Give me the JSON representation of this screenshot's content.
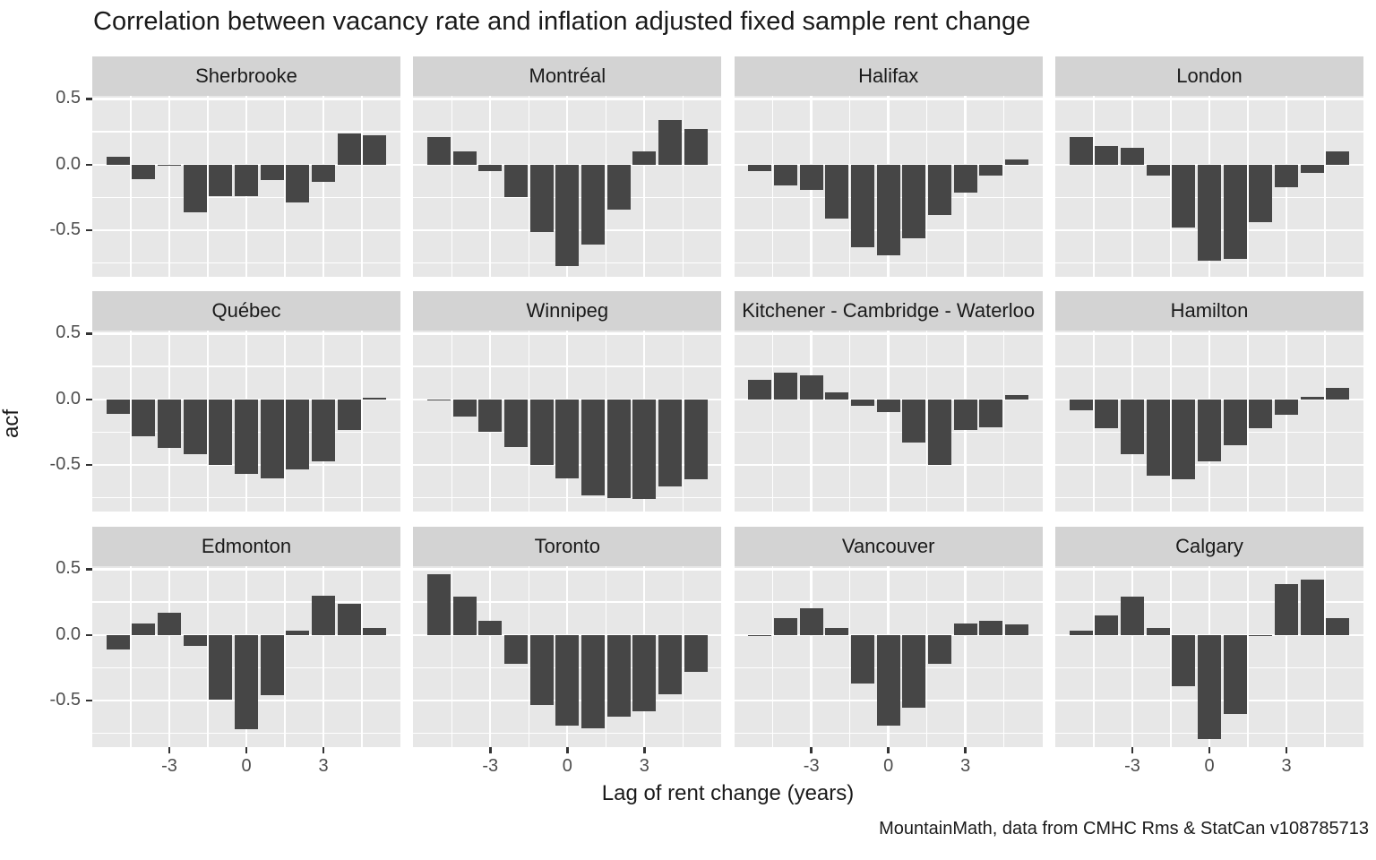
{
  "title": "Correlation between vacancy rate and inflation adjusted fixed sample rent change",
  "caption": "MountainMath, data from CMHC Rms & StatCan v108785713",
  "chart_data": {
    "type": "bar",
    "title": "Correlation between vacancy rate and inflation adjusted fixed sample rent change",
    "xlabel": "Lag of rent change (years)",
    "ylabel": "acf",
    "x": [
      -5,
      -4,
      -3,
      -2,
      -1,
      0,
      1,
      2,
      3,
      4,
      5
    ],
    "x_tick_values": [
      -3,
      0,
      3
    ],
    "x_tick_labels": [
      "-3",
      "0",
      "3"
    ],
    "y_tick_values": [
      0.5,
      0.0,
      -0.5
    ],
    "y_tick_labels": [
      "0.5",
      "0.0",
      "-0.5"
    ],
    "xlim": [
      -6,
      6
    ],
    "ylim": [
      -0.853,
      0.523
    ],
    "grid": "on",
    "x_minor_gridlines": [
      -4.5,
      -1.5,
      1.5,
      4.5
    ],
    "y_minor_gridlines": [
      0.25,
      -0.25,
      -0.75
    ],
    "facet_layout": {
      "rows": 3,
      "cols": 4
    },
    "series": [
      {
        "name": "Sherbrooke",
        "values": [
          0.06,
          -0.11,
          -0.01,
          -0.36,
          -0.24,
          -0.24,
          -0.12,
          -0.29,
          -0.13,
          0.24,
          0.22
        ]
      },
      {
        "name": "Montréal",
        "values": [
          0.21,
          0.1,
          -0.05,
          -0.25,
          -0.51,
          -0.77,
          -0.61,
          -0.34,
          0.1,
          0.34,
          0.27
        ]
      },
      {
        "name": "Halifax",
        "values": [
          -0.05,
          -0.16,
          -0.19,
          -0.41,
          -0.63,
          -0.69,
          -0.56,
          -0.38,
          -0.21,
          -0.08,
          0.04
        ]
      },
      {
        "name": "London",
        "values": [
          0.21,
          0.14,
          0.13,
          -0.08,
          -0.48,
          -0.73,
          -0.72,
          -0.44,
          -0.17,
          -0.06,
          0.1
        ]
      },
      {
        "name": "Québec",
        "values": [
          -0.11,
          -0.28,
          -0.37,
          -0.42,
          -0.5,
          -0.57,
          -0.6,
          -0.53,
          -0.47,
          -0.23,
          0.01
        ]
      },
      {
        "name": "Winnipeg",
        "values": [
          -0.01,
          -0.13,
          -0.25,
          -0.36,
          -0.5,
          -0.6,
          -0.73,
          -0.75,
          -0.76,
          -0.66,
          -0.61
        ]
      },
      {
        "name": "Kitchener - Cambridge - Waterloo",
        "values": [
          0.15,
          0.2,
          0.18,
          0.05,
          -0.05,
          -0.1,
          -0.33,
          -0.5,
          -0.23,
          -0.21,
          0.03
        ]
      },
      {
        "name": "Hamilton",
        "values": [
          -0.08,
          -0.22,
          -0.42,
          -0.58,
          -0.61,
          -0.47,
          -0.35,
          -0.22,
          -0.12,
          0.02,
          0.09
        ]
      },
      {
        "name": "Edmonton",
        "values": [
          -0.11,
          0.09,
          0.17,
          -0.08,
          -0.49,
          -0.72,
          -0.46,
          0.03,
          0.3,
          0.24,
          0.05
        ]
      },
      {
        "name": "Toronto",
        "values": [
          0.46,
          0.29,
          0.11,
          -0.22,
          -0.53,
          -0.69,
          -0.71,
          -0.62,
          -0.58,
          -0.45,
          -0.28
        ]
      },
      {
        "name": "Vancouver",
        "values": [
          -0.01,
          0.13,
          0.2,
          0.05,
          -0.37,
          -0.69,
          -0.55,
          -0.22,
          0.09,
          0.11,
          0.08
        ]
      },
      {
        "name": "Calgary",
        "values": [
          0.03,
          0.15,
          0.29,
          0.05,
          -0.39,
          -0.79,
          -0.6,
          -0.01,
          0.39,
          0.42,
          0.13
        ]
      }
    ],
    "colors": {
      "bar": "#464646",
      "panel_background": "#e7e7e7",
      "strip_background": "#d3d3d3",
      "gridline": "#ffffff",
      "tick": "#333333",
      "tick_label": "#4d4d4d",
      "text": "#1a1a1a"
    }
  }
}
